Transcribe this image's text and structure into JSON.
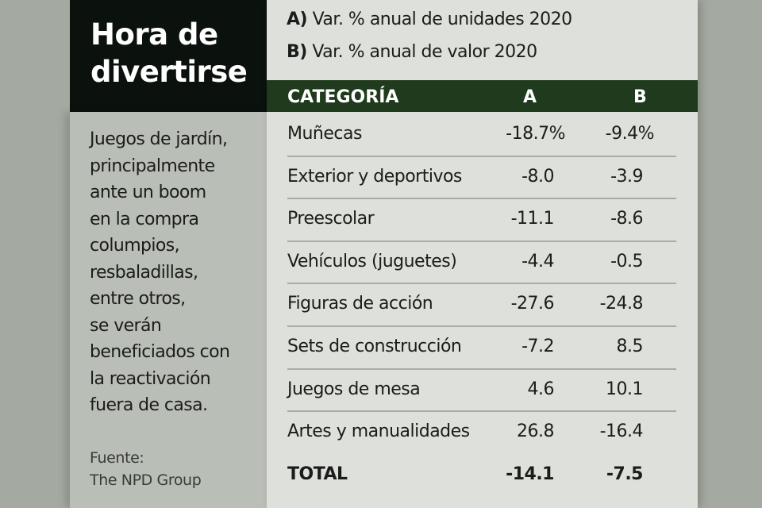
{
  "title": "Hora de\ndivertirse",
  "description": "Juegos de jardín,\nprincipalmente\nante un boom\nen la compra\ncolumpios,\nresbaladillas,\nentre otros,\nse verán\nbeneficiados con\nla reactivación\nfuera de casa.",
  "source": "Fuente:\nThe NPD Group",
  "legend": [
    {
      "key": "A)",
      "text": "Var. % anual de unidades 2020"
    },
    {
      "key": "B)",
      "text": "Var. % anual de valor 2020"
    }
  ],
  "colors": {
    "header": "#1f3a1c",
    "title_bg": "#0b110c",
    "panel": "#dde0db",
    "side": "#b9beb6"
  },
  "chart_data": {
    "type": "table",
    "columns": [
      "CATEGORÍA",
      "A",
      "B"
    ],
    "rows": [
      [
        "Muñecas",
        "-18.7%",
        "-9.4%"
      ],
      [
        "Exterior y deportivos",
        "-8.0",
        "-3.9"
      ],
      [
        "Preescolar",
        "-11.1",
        "-8.6"
      ],
      [
        "Vehículos (juguetes)",
        "-4.4",
        "-0.5"
      ],
      [
        "Figuras de acción",
        "-27.6",
        "-24.8"
      ],
      [
        "Sets de construcción",
        "-7.2",
        "8.5"
      ],
      [
        "Juegos de mesa",
        "4.6",
        "10.1"
      ],
      [
        "Artes y manualidades",
        "26.8",
        "-16.4"
      ],
      [
        "TOTAL",
        "-14.1",
        "-7.5"
      ]
    ]
  }
}
